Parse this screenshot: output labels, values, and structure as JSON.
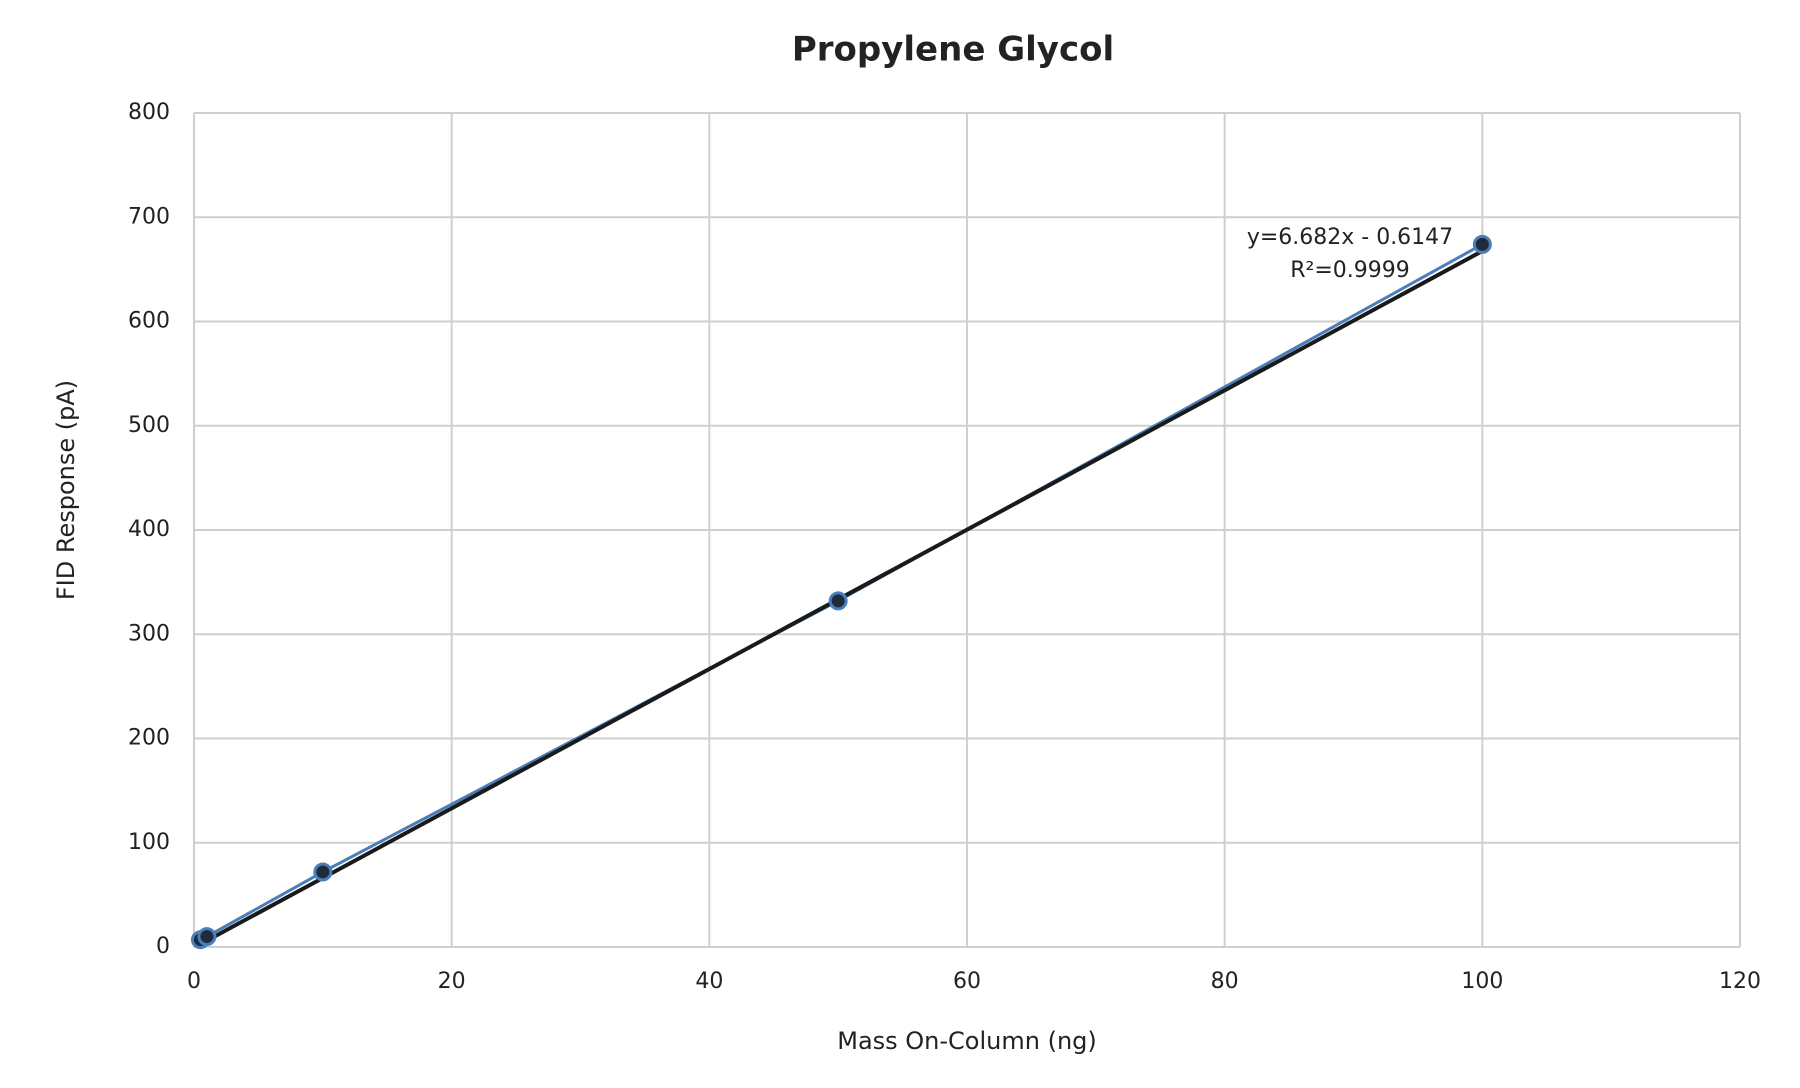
{
  "chart_data": {
    "type": "scatter",
    "title": "Propylene Glycol",
    "x_label": "Mass On-Column (ng)",
    "y_label": "FID Response (pA)",
    "series": [
      {
        "x": [
          0.5,
          1,
          10,
          50,
          100
        ],
        "values": [
          7,
          10,
          72,
          332,
          674
        ],
        "color": "#4a7ebb",
        "marker_color": "#1f2a3a"
      }
    ],
    "trendline": {
      "slope": 6.682,
      "intercept": -0.6147,
      "color": "#1a1a1a"
    },
    "annotations": [
      "y=6.682x - 0.6147",
      "R²=0.9999"
    ],
    "xlim": [
      0,
      120
    ],
    "xticks": [
      0,
      20,
      40,
      60,
      80,
      100,
      120
    ],
    "ylim": [
      0,
      800
    ],
    "yticks": [
      0,
      100,
      200,
      300,
      400,
      500,
      600,
      700,
      800
    ],
    "grid": true
  }
}
